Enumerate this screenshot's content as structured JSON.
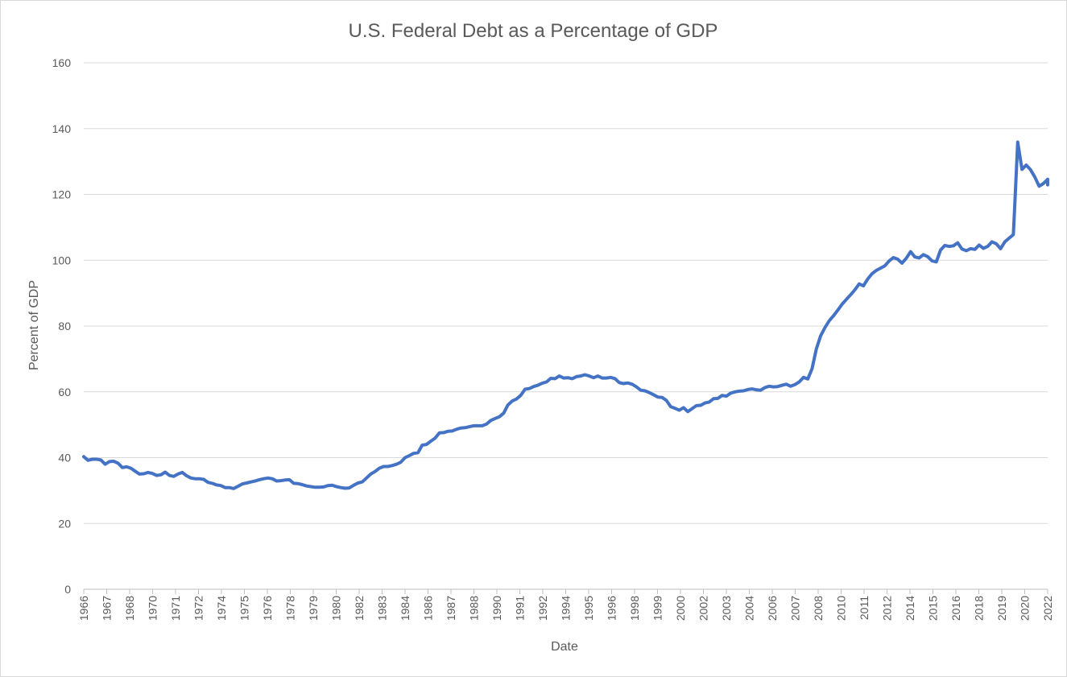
{
  "chart_data": {
    "type": "line",
    "title": "U.S. Federal Debt as a Percentage of GDP",
    "xlabel": "Date",
    "ylabel": "Percent of GDP",
    "ylim": [
      0,
      160
    ],
    "yticks": [
      0,
      20,
      40,
      60,
      80,
      100,
      120,
      140,
      160
    ],
    "xlim": [
      "1966-01",
      "2022-04"
    ],
    "x_tick_labels": [
      "1966",
      "1967",
      "1968",
      "1970",
      "1971",
      "1972",
      "1974",
      "1975",
      "1976",
      "1978",
      "1979",
      "1980",
      "1982",
      "1983",
      "1984",
      "1986",
      "1987",
      "1988",
      "1990",
      "1991",
      "1992",
      "1994",
      "1995",
      "1996",
      "1998",
      "1999",
      "2000",
      "2002",
      "2003",
      "2004",
      "2006",
      "2007",
      "2008",
      "2010",
      "2011",
      "2012",
      "2014",
      "2015",
      "2016",
      "2018",
      "2019",
      "2020",
      "2022"
    ],
    "grid": "horizontal",
    "line_color": "#4472c4",
    "series": [
      {
        "name": "",
        "values": [
          [
            "1966-01",
            40.3
          ],
          [
            "1966-04",
            39.2
          ],
          [
            "1966-07",
            39.5
          ],
          [
            "1966-10",
            39.5
          ],
          [
            "1967-01",
            39.3
          ],
          [
            "1967-04",
            38.0
          ],
          [
            "1967-07",
            38.8
          ],
          [
            "1967-10",
            38.9
          ],
          [
            "1968-01",
            38.3
          ],
          [
            "1968-04",
            37.0
          ],
          [
            "1968-07",
            37.2
          ],
          [
            "1968-10",
            36.8
          ],
          [
            "1969-01",
            35.9
          ],
          [
            "1969-04",
            35.0
          ],
          [
            "1969-07",
            35.1
          ],
          [
            "1969-10",
            35.5
          ],
          [
            "1970-01",
            35.2
          ],
          [
            "1970-04",
            34.6
          ],
          [
            "1970-07",
            34.8
          ],
          [
            "1970-10",
            35.6
          ],
          [
            "1971-01",
            34.6
          ],
          [
            "1971-04",
            34.3
          ],
          [
            "1971-07",
            35.0
          ],
          [
            "1971-10",
            35.5
          ],
          [
            "1972-01",
            34.5
          ],
          [
            "1972-04",
            33.8
          ],
          [
            "1972-07",
            33.6
          ],
          [
            "1972-10",
            33.6
          ],
          [
            "1973-01",
            33.4
          ],
          [
            "1973-04",
            32.5
          ],
          [
            "1973-07",
            32.2
          ],
          [
            "1973-10",
            31.7
          ],
          [
            "1974-01",
            31.5
          ],
          [
            "1974-04",
            30.9
          ],
          [
            "1974-07",
            30.9
          ],
          [
            "1974-10",
            30.6
          ],
          [
            "1975-01",
            31.3
          ],
          [
            "1975-04",
            32.0
          ],
          [
            "1975-07",
            32.3
          ],
          [
            "1975-10",
            32.6
          ],
          [
            "1976-01",
            32.9
          ],
          [
            "1976-04",
            33.3
          ],
          [
            "1976-07",
            33.6
          ],
          [
            "1976-10",
            33.8
          ],
          [
            "1977-01",
            33.6
          ],
          [
            "1977-04",
            32.9
          ],
          [
            "1977-07",
            33.0
          ],
          [
            "1977-10",
            33.2
          ],
          [
            "1978-01",
            33.3
          ],
          [
            "1978-04",
            32.2
          ],
          [
            "1978-07",
            32.1
          ],
          [
            "1978-10",
            31.8
          ],
          [
            "1979-01",
            31.4
          ],
          [
            "1979-04",
            31.2
          ],
          [
            "1979-07",
            31.0
          ],
          [
            "1979-10",
            31.0
          ],
          [
            "1980-01",
            31.1
          ],
          [
            "1980-04",
            31.5
          ],
          [
            "1980-07",
            31.6
          ],
          [
            "1980-10",
            31.2
          ],
          [
            "1981-01",
            30.9
          ],
          [
            "1981-04",
            30.7
          ],
          [
            "1981-07",
            30.8
          ],
          [
            "1981-10",
            31.6
          ],
          [
            "1982-01",
            32.3
          ],
          [
            "1982-04",
            32.6
          ],
          [
            "1982-07",
            33.8
          ],
          [
            "1982-10",
            35.0
          ],
          [
            "1983-01",
            35.8
          ],
          [
            "1983-04",
            36.8
          ],
          [
            "1983-07",
            37.3
          ],
          [
            "1983-10",
            37.3
          ],
          [
            "1984-01",
            37.6
          ],
          [
            "1984-04",
            38.0
          ],
          [
            "1984-07",
            38.6
          ],
          [
            "1984-10",
            40.0
          ],
          [
            "1985-01",
            40.6
          ],
          [
            "1985-04",
            41.3
          ],
          [
            "1985-07",
            41.5
          ],
          [
            "1985-10",
            43.8
          ],
          [
            "1986-01",
            44.0
          ],
          [
            "1986-04",
            45.0
          ],
          [
            "1986-07",
            45.9
          ],
          [
            "1986-10",
            47.5
          ],
          [
            "1987-01",
            47.6
          ],
          [
            "1987-04",
            48.0
          ],
          [
            "1987-07",
            48.1
          ],
          [
            "1987-10",
            48.6
          ],
          [
            "1988-01",
            49.0
          ],
          [
            "1988-04",
            49.1
          ],
          [
            "1988-07",
            49.4
          ],
          [
            "1988-10",
            49.7
          ],
          [
            "1989-01",
            49.7
          ],
          [
            "1989-04",
            49.7
          ],
          [
            "1989-07",
            50.2
          ],
          [
            "1989-10",
            51.3
          ],
          [
            "1990-01",
            51.9
          ],
          [
            "1990-04",
            52.4
          ],
          [
            "1990-07",
            53.5
          ],
          [
            "1990-10",
            56.0
          ],
          [
            "1991-01",
            57.2
          ],
          [
            "1991-04",
            57.8
          ],
          [
            "1991-07",
            58.9
          ],
          [
            "1991-10",
            60.8
          ],
          [
            "1992-01",
            61.0
          ],
          [
            "1992-04",
            61.6
          ],
          [
            "1992-07",
            62.0
          ],
          [
            "1992-10",
            62.6
          ],
          [
            "1993-01",
            63.0
          ],
          [
            "1993-04",
            64.1
          ],
          [
            "1993-07",
            64.0
          ],
          [
            "1993-10",
            64.8
          ],
          [
            "1994-01",
            64.2
          ],
          [
            "1994-04",
            64.3
          ],
          [
            "1994-07",
            64.0
          ],
          [
            "1994-10",
            64.6
          ],
          [
            "1995-01",
            64.8
          ],
          [
            "1995-04",
            65.2
          ],
          [
            "1995-07",
            64.8
          ],
          [
            "1995-10",
            64.3
          ],
          [
            "1996-01",
            64.8
          ],
          [
            "1996-04",
            64.2
          ],
          [
            "1996-07",
            64.2
          ],
          [
            "1996-10",
            64.4
          ],
          [
            "1997-01",
            64.0
          ],
          [
            "1997-04",
            62.8
          ],
          [
            "1997-07",
            62.5
          ],
          [
            "1997-10",
            62.7
          ],
          [
            "1998-01",
            62.3
          ],
          [
            "1998-04",
            61.5
          ],
          [
            "1998-07",
            60.5
          ],
          [
            "1998-10",
            60.3
          ],
          [
            "1999-01",
            59.8
          ],
          [
            "1999-04",
            59.1
          ],
          [
            "1999-07",
            58.4
          ],
          [
            "1999-10",
            58.3
          ],
          [
            "2000-01",
            57.4
          ],
          [
            "2000-04",
            55.5
          ],
          [
            "2000-07",
            55.0
          ],
          [
            "2000-10",
            54.4
          ],
          [
            "2001-01",
            55.2
          ],
          [
            "2001-04",
            54.0
          ],
          [
            "2001-07",
            54.9
          ],
          [
            "2001-10",
            55.8
          ],
          [
            "2002-01",
            55.9
          ],
          [
            "2002-04",
            56.6
          ],
          [
            "2002-07",
            56.9
          ],
          [
            "2002-10",
            57.9
          ],
          [
            "2003-01",
            58.0
          ],
          [
            "2003-04",
            58.9
          ],
          [
            "2003-07",
            58.7
          ],
          [
            "2003-10",
            59.6
          ],
          [
            "2004-01",
            60.0
          ],
          [
            "2004-04",
            60.2
          ],
          [
            "2004-07",
            60.3
          ],
          [
            "2004-10",
            60.7
          ],
          [
            "2005-01",
            60.9
          ],
          [
            "2005-04",
            60.6
          ],
          [
            "2005-07",
            60.5
          ],
          [
            "2005-10",
            61.3
          ],
          [
            "2006-01",
            61.7
          ],
          [
            "2006-04",
            61.5
          ],
          [
            "2006-07",
            61.6
          ],
          [
            "2006-10",
            62.0
          ],
          [
            "2007-01",
            62.3
          ],
          [
            "2007-04",
            61.7
          ],
          [
            "2007-07",
            62.2
          ],
          [
            "2007-10",
            63.0
          ],
          [
            "2008-01",
            64.4
          ],
          [
            "2008-04",
            63.9
          ],
          [
            "2008-07",
            67.0
          ],
          [
            "2008-10",
            73.0
          ],
          [
            "2009-01",
            77.0
          ],
          [
            "2009-04",
            79.5
          ],
          [
            "2009-07",
            81.6
          ],
          [
            "2009-10",
            83.1
          ],
          [
            "2010-01",
            84.8
          ],
          [
            "2010-04",
            86.6
          ],
          [
            "2010-07",
            88.1
          ],
          [
            "2010-10",
            89.5
          ],
          [
            "2011-01",
            91.0
          ],
          [
            "2011-04",
            92.8
          ],
          [
            "2011-07",
            92.2
          ],
          [
            "2011-10",
            94.3
          ],
          [
            "2012-01",
            95.9
          ],
          [
            "2012-04",
            96.9
          ],
          [
            "2012-07",
            97.6
          ],
          [
            "2012-10",
            98.3
          ],
          [
            "2013-01",
            99.8
          ],
          [
            "2013-04",
            100.8
          ],
          [
            "2013-07",
            100.3
          ],
          [
            "2013-10",
            99.1
          ],
          [
            "2014-01",
            100.6
          ],
          [
            "2014-04",
            102.6
          ],
          [
            "2014-07",
            101.0
          ],
          [
            "2014-10",
            100.7
          ],
          [
            "2015-01",
            101.7
          ],
          [
            "2015-04",
            101.1
          ],
          [
            "2015-07",
            99.8
          ],
          [
            "2015-10",
            99.5
          ],
          [
            "2016-01",
            103.1
          ],
          [
            "2016-04",
            104.5
          ],
          [
            "2016-07",
            104.2
          ],
          [
            "2016-10",
            104.4
          ],
          [
            "2017-01",
            105.3
          ],
          [
            "2017-04",
            103.4
          ],
          [
            "2017-07",
            102.9
          ],
          [
            "2017-10",
            103.5
          ],
          [
            "2018-01",
            103.3
          ],
          [
            "2018-04",
            104.6
          ],
          [
            "2018-07",
            103.6
          ],
          [
            "2018-10",
            104.2
          ],
          [
            "2019-01",
            105.6
          ],
          [
            "2019-04",
            105.0
          ],
          [
            "2019-07",
            103.5
          ],
          [
            "2019-10",
            105.6
          ],
          [
            "2020-01",
            106.7
          ],
          [
            "2020-04",
            107.8
          ],
          [
            "2020-07",
            135.9
          ],
          [
            "2020-10",
            127.6
          ],
          [
            "2021-01",
            128.9
          ],
          [
            "2021-04",
            127.5
          ],
          [
            "2021-07",
            125.3
          ],
          [
            "2021-10",
            122.5
          ],
          [
            "2022-01",
            123.3
          ],
          [
            "2022-04",
            124.6
          ],
          [
            "2022-07",
            122.9
          ]
        ]
      }
    ]
  }
}
